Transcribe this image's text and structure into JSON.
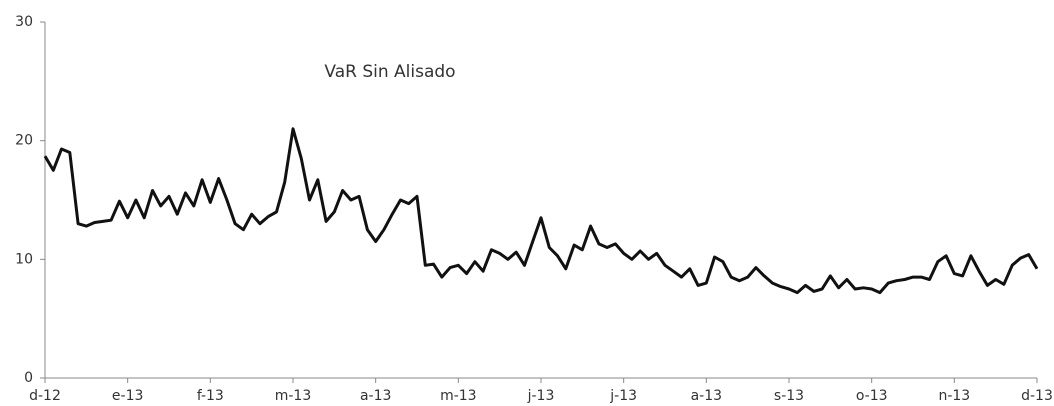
{
  "chart_data": {
    "type": "line",
    "annotation": "VaR Sin Alisado",
    "categories": [
      "d-12",
      null,
      null,
      null,
      null,
      null,
      null,
      null,
      null,
      null,
      "e-13",
      null,
      null,
      null,
      null,
      null,
      null,
      null,
      null,
      null,
      "f-13",
      null,
      null,
      null,
      null,
      null,
      null,
      null,
      null,
      null,
      "m-13",
      null,
      null,
      null,
      null,
      null,
      null,
      null,
      null,
      null,
      "a-13",
      null,
      null,
      null,
      null,
      null,
      null,
      null,
      null,
      null,
      "m-13",
      null,
      null,
      null,
      null,
      null,
      null,
      null,
      null,
      null,
      "j-13",
      null,
      null,
      null,
      null,
      null,
      null,
      null,
      null,
      null,
      "j-13",
      null,
      null,
      null,
      null,
      null,
      null,
      null,
      null,
      null,
      "a-13",
      null,
      null,
      null,
      null,
      null,
      null,
      null,
      null,
      null,
      "s-13",
      null,
      null,
      null,
      null,
      null,
      null,
      null,
      null,
      null,
      "o-13",
      null,
      null,
      null,
      null,
      null,
      null,
      null,
      null,
      null,
      "n-13",
      null,
      null,
      null,
      null,
      null,
      null,
      null,
      null,
      null,
      "d-13"
    ],
    "series": [
      {
        "color": "#111111",
        "values": [
          18.7,
          17.5,
          19.3,
          19.0,
          13.0,
          12.8,
          13.1,
          13.2,
          13.3,
          14.9,
          13.5,
          15.0,
          13.5,
          15.8,
          14.5,
          15.3,
          13.8,
          15.6,
          14.5,
          16.7,
          14.8,
          16.8,
          15.0,
          13.0,
          12.5,
          13.8,
          13.0,
          13.6,
          14.0,
          16.5,
          21.0,
          18.5,
          15.0,
          16.7,
          13.2,
          14.0,
          15.8,
          15.0,
          15.3,
          12.5,
          11.5,
          12.5,
          13.8,
          15.0,
          14.7,
          15.3,
          9.5,
          9.6,
          8.5,
          9.3,
          9.5,
          8.8,
          9.8,
          9.0,
          10.8,
          10.5,
          10.0,
          10.6,
          9.5,
          11.5,
          13.5,
          11.0,
          10.3,
          9.2,
          11.2,
          10.8,
          12.8,
          11.3,
          11.0,
          11.3,
          10.5,
          10.0,
          10.7,
          10.0,
          10.5,
          9.5,
          9.0,
          8.5,
          9.2,
          7.8,
          8.0,
          10.2,
          9.8,
          8.5,
          8.2,
          8.5,
          9.3,
          8.6,
          8.0,
          7.7,
          7.5,
          7.2,
          7.8,
          7.3,
          7.5,
          8.6,
          7.6,
          8.3,
          7.5,
          7.6,
          7.5,
          7.2,
          8.0,
          8.2,
          8.3,
          8.5,
          8.5,
          8.3,
          9.8,
          10.3,
          8.8,
          8.6,
          10.3,
          9.0,
          7.8,
          8.3,
          7.9,
          9.5,
          10.1,
          10.4,
          9.2
        ]
      }
    ],
    "ylim": [
      0,
      30
    ],
    "yticks": [
      0,
      10,
      20,
      30
    ]
  }
}
